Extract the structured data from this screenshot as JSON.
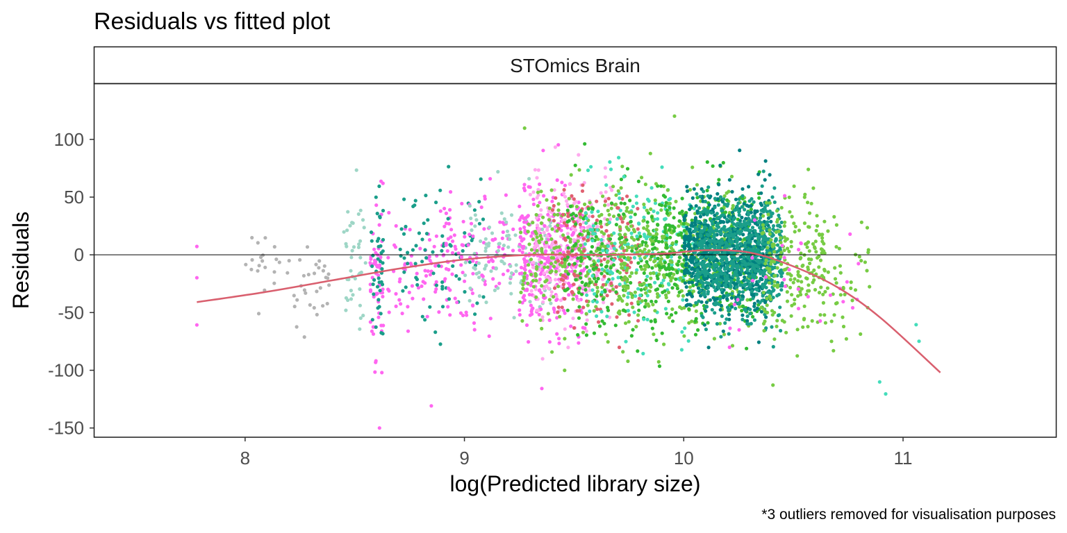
{
  "chart_data": {
    "type": "scatter",
    "title": "Residuals vs fitted plot",
    "facet": "STOmics Brain",
    "xlabel": "log(Predicted library size)",
    "ylabel": "Residuals",
    "caption": "*3 outliers removed for visualisation purposes",
    "xlim": [
      7.31,
      11.7
    ],
    "ylim": [
      -158,
      148
    ],
    "x_ticks": [
      8,
      9,
      10,
      11
    ],
    "x_tick_labels": [
      "8",
      "9",
      "10",
      "11"
    ],
    "y_ticks": [
      100,
      50,
      0,
      -50,
      -100,
      -150
    ],
    "y_tick_labels": [
      "100",
      "50",
      "0",
      "-50",
      "-100",
      "-150"
    ],
    "reference_line_y": 0,
    "grid": false,
    "legend": "none",
    "point_colors": [
      "#b3b3b3",
      "#9ed6c6",
      "#ff66f0",
      "#1a9e8a",
      "#008080",
      "#33bb33",
      "#77cc44",
      "#44ddbb",
      "#ffaaee",
      "#e06070"
    ],
    "trend_color": "#d95f6e",
    "trend": {
      "x": [
        7.78,
        8.1,
        8.4,
        8.7,
        9.0,
        9.3,
        9.6,
        9.9,
        10.1,
        10.3,
        10.5,
        10.7,
        10.9,
        11.17
      ],
      "y": [
        -41,
        -32,
        -22,
        -12,
        -4,
        0,
        0,
        1,
        4,
        2,
        -10,
        -28,
        -55,
        -102
      ]
    },
    "series_groups": [
      {
        "x_center": 7.78,
        "x_spread": 0.0,
        "y_mean": 0,
        "y_sd": 22,
        "n": 3,
        "color_index": 2
      },
      {
        "x_center": 8.1,
        "x_spread": 0.1,
        "y_mean": -5,
        "y_sd": 15,
        "n": 20,
        "color_index": 0
      },
      {
        "x_center": 8.3,
        "x_spread": 0.1,
        "y_mean": -25,
        "y_sd": 22,
        "n": 30,
        "color_index": 0
      },
      {
        "x_center": 8.5,
        "x_spread": 0.05,
        "y_mean": -10,
        "y_sd": 28,
        "n": 40,
        "color_index": 1
      },
      {
        "x_center": 8.6,
        "x_spread": 0.03,
        "y_mean": -20,
        "y_sd": 35,
        "n": 60,
        "color_index": 2
      },
      {
        "x_center": 8.6,
        "x_spread": 0.03,
        "y_mean": -10,
        "y_sd": 30,
        "n": 40,
        "color_index": 3
      },
      {
        "x_center": 8.8,
        "x_spread": 0.15,
        "y_mean": -5,
        "y_sd": 30,
        "n": 80,
        "color_index": 2
      },
      {
        "x_center": 8.9,
        "x_spread": 0.2,
        "y_mean": -2,
        "y_sd": 28,
        "n": 80,
        "color_index": 3
      },
      {
        "x_center": 9.1,
        "x_spread": 0.2,
        "y_mean": 0,
        "y_sd": 28,
        "n": 120,
        "color_index": 2
      },
      {
        "x_center": 9.2,
        "x_spread": 0.2,
        "y_mean": 0,
        "y_sd": 26,
        "n": 100,
        "color_index": 1
      },
      {
        "x_center": 9.4,
        "x_spread": 0.15,
        "y_mean": 0,
        "y_sd": 30,
        "n": 300,
        "color_index": 2
      },
      {
        "x_center": 9.5,
        "x_spread": 0.2,
        "y_mean": 0,
        "y_sd": 30,
        "n": 250,
        "color_index": 8
      },
      {
        "x_center": 9.5,
        "x_spread": 0.25,
        "y_mean": 0,
        "y_sd": 32,
        "n": 250,
        "color_index": 6
      },
      {
        "x_center": 9.6,
        "x_spread": 0.2,
        "y_mean": 0,
        "y_sd": 30,
        "n": 150,
        "color_index": 9
      },
      {
        "x_center": 9.7,
        "x_spread": 0.25,
        "y_mean": 0,
        "y_sd": 30,
        "n": 200,
        "color_index": 5
      },
      {
        "x_center": 9.8,
        "x_spread": 0.25,
        "y_mean": 0,
        "y_sd": 32,
        "n": 200,
        "color_index": 7
      },
      {
        "x_center": 10.0,
        "x_spread": 0.3,
        "y_mean": 0,
        "y_sd": 32,
        "n": 400,
        "color_index": 6
      },
      {
        "x_center": 10.1,
        "x_spread": 0.25,
        "y_mean": 0,
        "y_sd": 28,
        "n": 350,
        "color_index": 5
      },
      {
        "x_center": 10.2,
        "x_spread": 0.2,
        "y_mean": 0,
        "y_sd": 25,
        "n": 700,
        "color_index": 4
      },
      {
        "x_center": 10.25,
        "x_spread": 0.2,
        "y_mean": -2,
        "y_sd": 25,
        "n": 700,
        "color_index": 3
      },
      {
        "x_center": 10.5,
        "x_spread": 0.15,
        "y_mean": -10,
        "y_sd": 30,
        "n": 200,
        "color_index": 6
      },
      {
        "x_center": 10.7,
        "x_spread": 0.15,
        "y_mean": -25,
        "y_sd": 25,
        "n": 60,
        "color_index": 6
      },
      {
        "x_center": 10.5,
        "x_spread": 0.3,
        "y_mean": -30,
        "y_sd": 35,
        "n": 30,
        "color_index": 2
      },
      {
        "x_center": 11.0,
        "x_spread": 0.15,
        "y_mean": -85,
        "y_sd": 25,
        "n": 4,
        "color_index": 7
      }
    ]
  }
}
